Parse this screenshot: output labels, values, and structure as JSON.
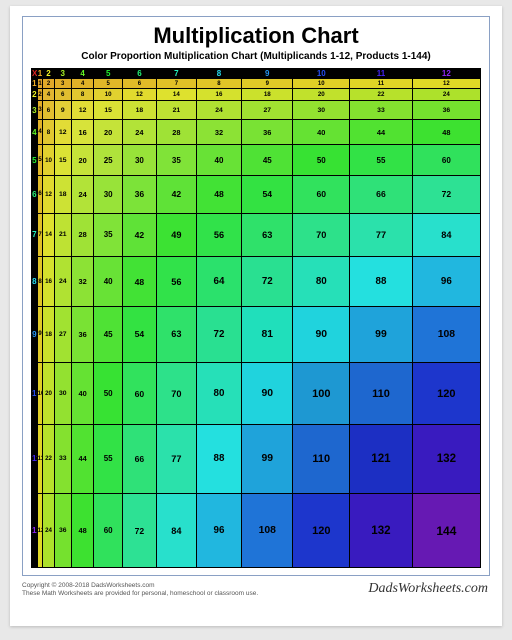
{
  "title": "Multiplication Chart",
  "subtitle": "Color Proportion Multiplication Chart (Multiplicands 1-12, Products 1-144)",
  "corner_symbol": "X",
  "n": 12,
  "max_product": 144,
  "hue_start": 40,
  "hue_end": 270,
  "header_bg": "#000000",
  "border_color": "#000000",
  "corner_color": "#dd2222",
  "footer_line1": "Copyright © 2008-2018 DadsWorksheets.com",
  "footer_line2": "These Math Worksheets are provided for personal, homeschool or classroom use.",
  "brand": "DadsWorksheets.com",
  "base_cell": 36,
  "title_fontsize": 22,
  "subtitle_fontsize": 10,
  "cell_fontsize": 8
}
